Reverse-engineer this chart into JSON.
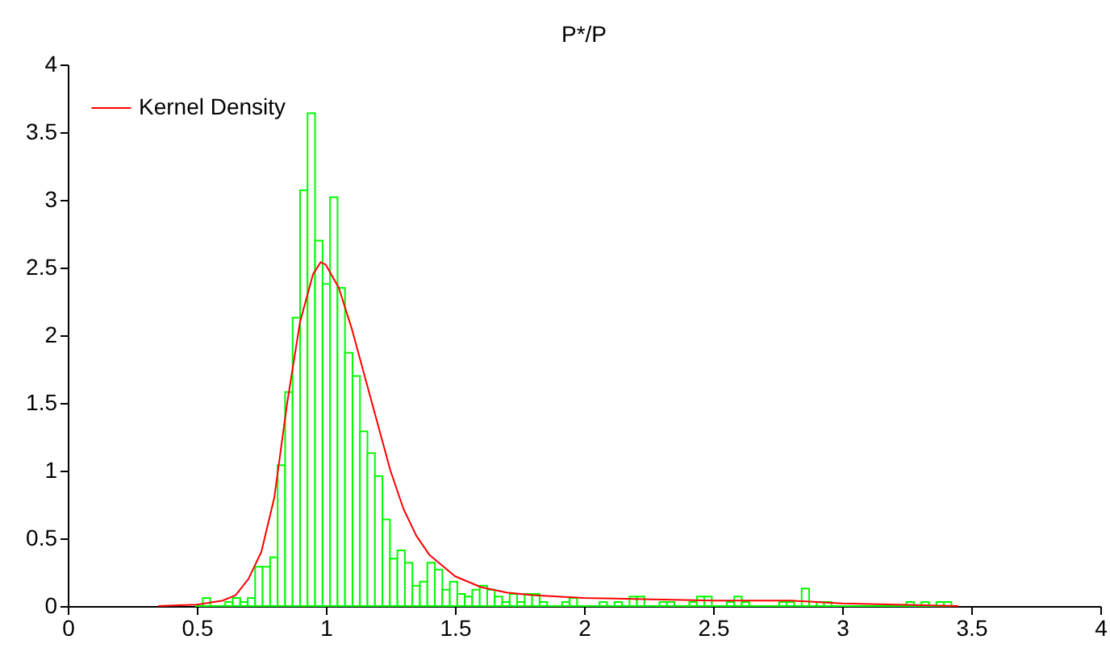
{
  "chart_data": {
    "type": "histogram",
    "title": "P*/P",
    "xlim": [
      0,
      4
    ],
    "ylim": [
      0,
      4
    ],
    "xticks": [
      0,
      0.5,
      1,
      1.5,
      2,
      2.5,
      3,
      3.5,
      4
    ],
    "yticks": [
      0,
      0.5,
      1,
      1.5,
      2,
      2.5,
      3,
      3.5,
      4
    ],
    "grid": false,
    "legend": "top left",
    "series": [
      {
        "color": "#00ff00",
        "bins": [
          0.494,
          0.523,
          0.552,
          0.581,
          0.61,
          0.639,
          0.668,
          0.697,
          0.726,
          0.755,
          0.784,
          0.813,
          0.842,
          0.871,
          0.9,
          0.929,
          0.958,
          0.987,
          1.016,
          1.045,
          1.074,
          1.103,
          1.132,
          1.161,
          1.19,
          1.219,
          1.248,
          1.277,
          1.306,
          1.335,
          1.364,
          1.393,
          1.422,
          1.451,
          1.48,
          1.509,
          1.538,
          1.567,
          1.596,
          1.625,
          1.654,
          1.683,
          1.712,
          1.741,
          1.77,
          1.799,
          1.828,
          1.857,
          1.886,
          1.915,
          1.944,
          1.973,
          2.002,
          2.031,
          2.06,
          2.089,
          2.118,
          2.147,
          2.176,
          2.205,
          2.234,
          2.263,
          2.292,
          2.321,
          2.35,
          2.379,
          2.408,
          2.437,
          2.466,
          2.495,
          2.524,
          2.553,
          2.582,
          2.611,
          2.64,
          2.669,
          2.698,
          2.727,
          2.756,
          2.785,
          2.814,
          2.843,
          2.872,
          2.901,
          2.93,
          2.959,
          2.988,
          3.017,
          3.046,
          3.075,
          3.104,
          3.133,
          3.162,
          3.191,
          3.22,
          3.249,
          3.278,
          3.307,
          3.336,
          3.365,
          3.394,
          3.423
        ],
        "values": [
          0,
          0.06,
          0,
          0,
          0.03,
          0.06,
          0.03,
          0.06,
          0.29,
          0.29,
          0.36,
          1.04,
          1.58,
          2.13,
          3.07,
          3.64,
          2.7,
          2.38,
          3.02,
          2.35,
          1.87,
          1.7,
          1.29,
          1.13,
          0.96,
          0.64,
          0.35,
          0.41,
          0.32,
          0.15,
          0.18,
          0.32,
          0.27,
          0.12,
          0.18,
          0.09,
          0.07,
          0.12,
          0.15,
          0.12,
          0.07,
          0.03,
          0.09,
          0.03,
          0.09,
          0.09,
          0.03,
          0,
          0,
          0.03,
          0.06,
          0,
          0,
          0,
          0.03,
          0,
          0.03,
          0,
          0.07,
          0.07,
          0,
          0,
          0.03,
          0.03,
          0,
          0,
          0.03,
          0.07,
          0.07,
          0,
          0,
          0.03,
          0.07,
          0.03,
          0,
          0,
          0,
          0,
          0.03,
          0.03,
          0,
          0.13,
          0,
          0.03,
          0.03,
          0,
          0,
          0,
          0,
          0,
          0,
          0,
          0,
          0,
          0,
          0.03,
          0,
          0.03,
          0,
          0.03,
          0.03
        ]
      },
      {
        "type": "line",
        "name": "Kernel Density",
        "color": "#ff0000",
        "x": [
          0.35,
          0.5,
          0.6,
          0.65,
          0.7,
          0.75,
          0.8,
          0.85,
          0.9,
          0.95,
          0.98,
          1.0,
          1.05,
          1.1,
          1.15,
          1.2,
          1.25,
          1.3,
          1.35,
          1.4,
          1.5,
          1.6,
          1.7,
          1.8,
          2.0,
          2.5,
          2.8,
          3.0,
          3.45
        ],
        "values": [
          0,
          0.01,
          0.04,
          0.08,
          0.2,
          0.4,
          0.8,
          1.5,
          2.1,
          2.45,
          2.54,
          2.52,
          2.35,
          2.05,
          1.7,
          1.35,
          1.0,
          0.72,
          0.52,
          0.38,
          0.22,
          0.14,
          0.1,
          0.08,
          0.06,
          0.04,
          0.04,
          0.02,
          0
        ]
      }
    ]
  }
}
